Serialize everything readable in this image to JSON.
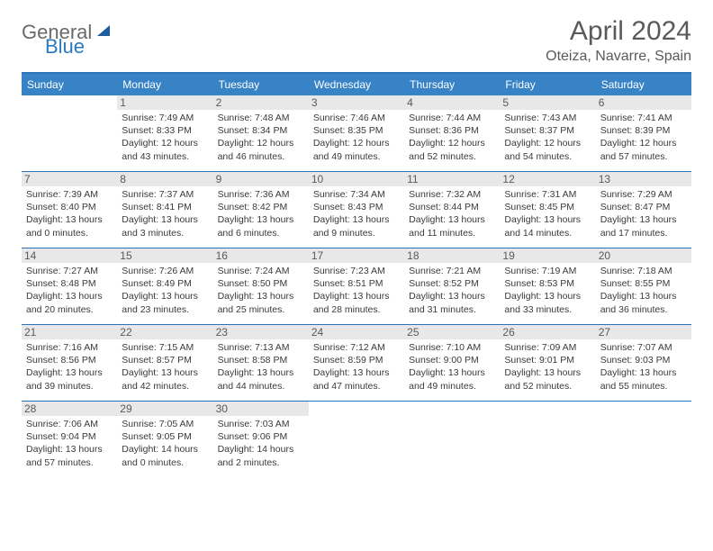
{
  "logo": {
    "line1": "General",
    "line2": "Blue"
  },
  "title": "April 2024",
  "location": "Oteiza, Navarre, Spain",
  "colors": {
    "header_bg": "#3783c6",
    "border": "#2a73b8",
    "daynum_bg": "#e8e8e8",
    "text": "#3a3a3a",
    "title_text": "#5a5a5a",
    "logo_gray": "#6a6a6a",
    "logo_blue": "#2a7ac0"
  },
  "dow": [
    "Sunday",
    "Monday",
    "Tuesday",
    "Wednesday",
    "Thursday",
    "Friday",
    "Saturday"
  ],
  "weeks": [
    [
      {
        "n": "",
        "sr": "",
        "ss": "",
        "dl": ""
      },
      {
        "n": "1",
        "sr": "Sunrise: 7:49 AM",
        "ss": "Sunset: 8:33 PM",
        "dl": "Daylight: 12 hours and 43 minutes."
      },
      {
        "n": "2",
        "sr": "Sunrise: 7:48 AM",
        "ss": "Sunset: 8:34 PM",
        "dl": "Daylight: 12 hours and 46 minutes."
      },
      {
        "n": "3",
        "sr": "Sunrise: 7:46 AM",
        "ss": "Sunset: 8:35 PM",
        "dl": "Daylight: 12 hours and 49 minutes."
      },
      {
        "n": "4",
        "sr": "Sunrise: 7:44 AM",
        "ss": "Sunset: 8:36 PM",
        "dl": "Daylight: 12 hours and 52 minutes."
      },
      {
        "n": "5",
        "sr": "Sunrise: 7:43 AM",
        "ss": "Sunset: 8:37 PM",
        "dl": "Daylight: 12 hours and 54 minutes."
      },
      {
        "n": "6",
        "sr": "Sunrise: 7:41 AM",
        "ss": "Sunset: 8:39 PM",
        "dl": "Daylight: 12 hours and 57 minutes."
      }
    ],
    [
      {
        "n": "7",
        "sr": "Sunrise: 7:39 AM",
        "ss": "Sunset: 8:40 PM",
        "dl": "Daylight: 13 hours and 0 minutes."
      },
      {
        "n": "8",
        "sr": "Sunrise: 7:37 AM",
        "ss": "Sunset: 8:41 PM",
        "dl": "Daylight: 13 hours and 3 minutes."
      },
      {
        "n": "9",
        "sr": "Sunrise: 7:36 AM",
        "ss": "Sunset: 8:42 PM",
        "dl": "Daylight: 13 hours and 6 minutes."
      },
      {
        "n": "10",
        "sr": "Sunrise: 7:34 AM",
        "ss": "Sunset: 8:43 PM",
        "dl": "Daylight: 13 hours and 9 minutes."
      },
      {
        "n": "11",
        "sr": "Sunrise: 7:32 AM",
        "ss": "Sunset: 8:44 PM",
        "dl": "Daylight: 13 hours and 11 minutes."
      },
      {
        "n": "12",
        "sr": "Sunrise: 7:31 AM",
        "ss": "Sunset: 8:45 PM",
        "dl": "Daylight: 13 hours and 14 minutes."
      },
      {
        "n": "13",
        "sr": "Sunrise: 7:29 AM",
        "ss": "Sunset: 8:47 PM",
        "dl": "Daylight: 13 hours and 17 minutes."
      }
    ],
    [
      {
        "n": "14",
        "sr": "Sunrise: 7:27 AM",
        "ss": "Sunset: 8:48 PM",
        "dl": "Daylight: 13 hours and 20 minutes."
      },
      {
        "n": "15",
        "sr": "Sunrise: 7:26 AM",
        "ss": "Sunset: 8:49 PM",
        "dl": "Daylight: 13 hours and 23 minutes."
      },
      {
        "n": "16",
        "sr": "Sunrise: 7:24 AM",
        "ss": "Sunset: 8:50 PM",
        "dl": "Daylight: 13 hours and 25 minutes."
      },
      {
        "n": "17",
        "sr": "Sunrise: 7:23 AM",
        "ss": "Sunset: 8:51 PM",
        "dl": "Daylight: 13 hours and 28 minutes."
      },
      {
        "n": "18",
        "sr": "Sunrise: 7:21 AM",
        "ss": "Sunset: 8:52 PM",
        "dl": "Daylight: 13 hours and 31 minutes."
      },
      {
        "n": "19",
        "sr": "Sunrise: 7:19 AM",
        "ss": "Sunset: 8:53 PM",
        "dl": "Daylight: 13 hours and 33 minutes."
      },
      {
        "n": "20",
        "sr": "Sunrise: 7:18 AM",
        "ss": "Sunset: 8:55 PM",
        "dl": "Daylight: 13 hours and 36 minutes."
      }
    ],
    [
      {
        "n": "21",
        "sr": "Sunrise: 7:16 AM",
        "ss": "Sunset: 8:56 PM",
        "dl": "Daylight: 13 hours and 39 minutes."
      },
      {
        "n": "22",
        "sr": "Sunrise: 7:15 AM",
        "ss": "Sunset: 8:57 PM",
        "dl": "Daylight: 13 hours and 42 minutes."
      },
      {
        "n": "23",
        "sr": "Sunrise: 7:13 AM",
        "ss": "Sunset: 8:58 PM",
        "dl": "Daylight: 13 hours and 44 minutes."
      },
      {
        "n": "24",
        "sr": "Sunrise: 7:12 AM",
        "ss": "Sunset: 8:59 PM",
        "dl": "Daylight: 13 hours and 47 minutes."
      },
      {
        "n": "25",
        "sr": "Sunrise: 7:10 AM",
        "ss": "Sunset: 9:00 PM",
        "dl": "Daylight: 13 hours and 49 minutes."
      },
      {
        "n": "26",
        "sr": "Sunrise: 7:09 AM",
        "ss": "Sunset: 9:01 PM",
        "dl": "Daylight: 13 hours and 52 minutes."
      },
      {
        "n": "27",
        "sr": "Sunrise: 7:07 AM",
        "ss": "Sunset: 9:03 PM",
        "dl": "Daylight: 13 hours and 55 minutes."
      }
    ],
    [
      {
        "n": "28",
        "sr": "Sunrise: 7:06 AM",
        "ss": "Sunset: 9:04 PM",
        "dl": "Daylight: 13 hours and 57 minutes."
      },
      {
        "n": "29",
        "sr": "Sunrise: 7:05 AM",
        "ss": "Sunset: 9:05 PM",
        "dl": "Daylight: 14 hours and 0 minutes."
      },
      {
        "n": "30",
        "sr": "Sunrise: 7:03 AM",
        "ss": "Sunset: 9:06 PM",
        "dl": "Daylight: 14 hours and 2 minutes."
      },
      {
        "n": "",
        "sr": "",
        "ss": "",
        "dl": ""
      },
      {
        "n": "",
        "sr": "",
        "ss": "",
        "dl": ""
      },
      {
        "n": "",
        "sr": "",
        "ss": "",
        "dl": ""
      },
      {
        "n": "",
        "sr": "",
        "ss": "",
        "dl": ""
      }
    ]
  ]
}
